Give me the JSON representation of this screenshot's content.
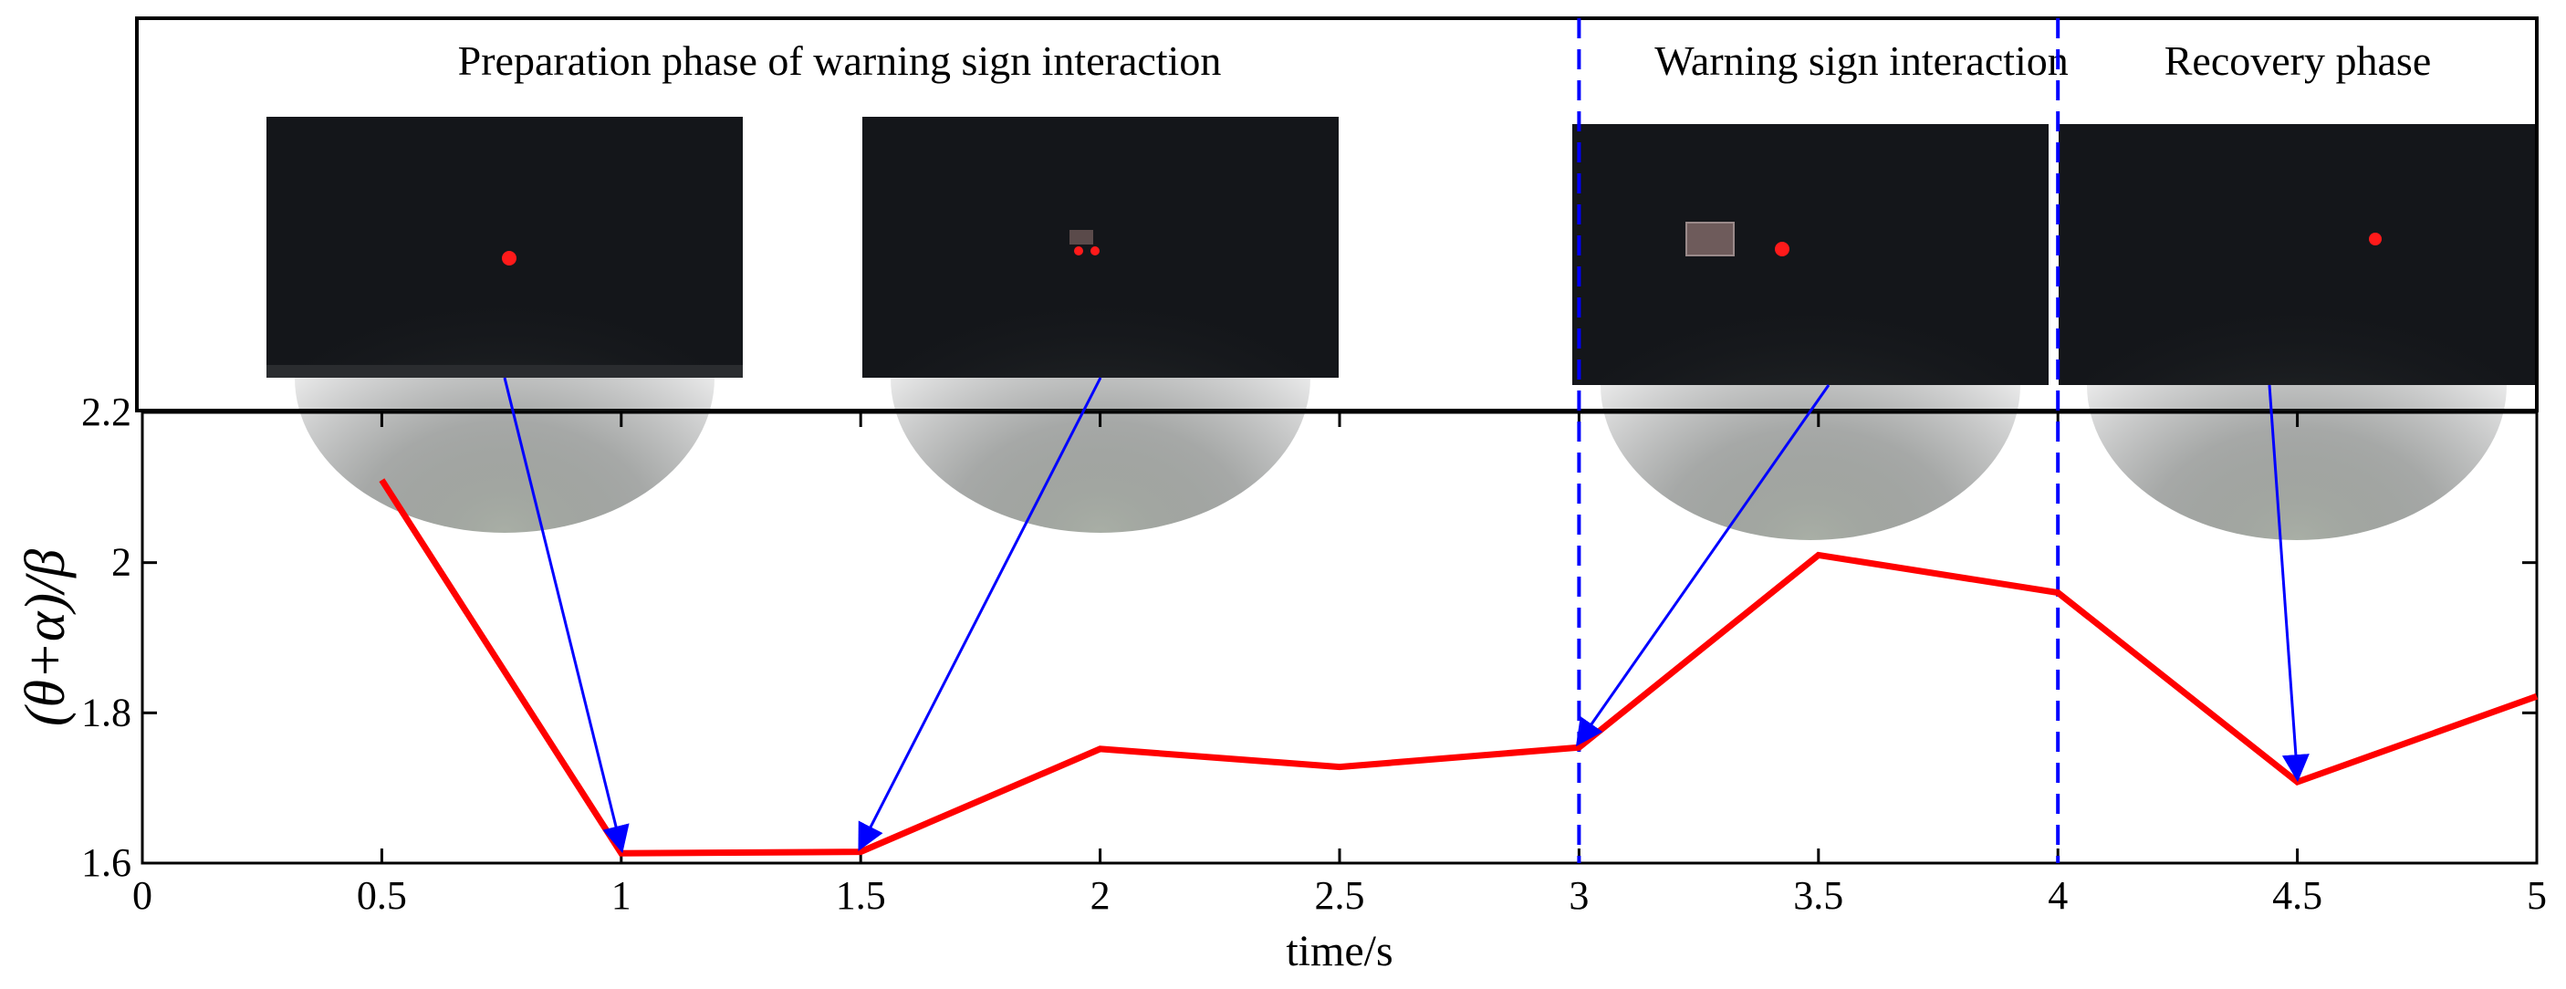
{
  "chart_data": {
    "type": "line",
    "title": "",
    "xlabel": "time/s",
    "ylabel": "(θ+α)/β",
    "xlim": [
      0,
      5
    ],
    "ylim": [
      1.6,
      2.2
    ],
    "x_ticks": [
      0,
      0.5,
      1,
      1.5,
      2,
      2.5,
      3,
      3.5,
      4,
      4.5,
      5
    ],
    "x_tick_labels": [
      "0",
      "0.5",
      "1",
      "1.5",
      "2",
      "2.5",
      "3",
      "3.5",
      "4",
      "4.5",
      "5"
    ],
    "y_ticks": [
      1.6,
      1.8,
      2,
      2.2
    ],
    "y_tick_labels": [
      "1.6",
      "1.8",
      "2",
      "2.2"
    ],
    "series": [
      {
        "x": [
          0.5,
          1.0,
          1.5,
          2.0,
          2.5,
          3.0,
          3.5,
          4.0,
          4.5,
          5.0
        ],
        "values": [
          2.11,
          1.613,
          1.615,
          1.752,
          1.728,
          1.754,
          2.01,
          1.96,
          1.708,
          1.822
        ],
        "color": "#ff0000"
      }
    ],
    "phase_dividers_x": [
      3,
      4
    ],
    "phase_labels": [
      "Preparation phase of warning sign interaction",
      "Warning sign interaction",
      "Recovery phase"
    ],
    "annotation_arrow_targets_x": [
      1.0,
      1.5,
      3.0,
      4.5
    ],
    "colors": {
      "line": "#ff0000",
      "arrow": "#0000ff",
      "divider": "#0000ff",
      "axis": "#000000",
      "thumbnail_bg": "#14161a",
      "gaze_dot": "#ff1a1a"
    }
  }
}
